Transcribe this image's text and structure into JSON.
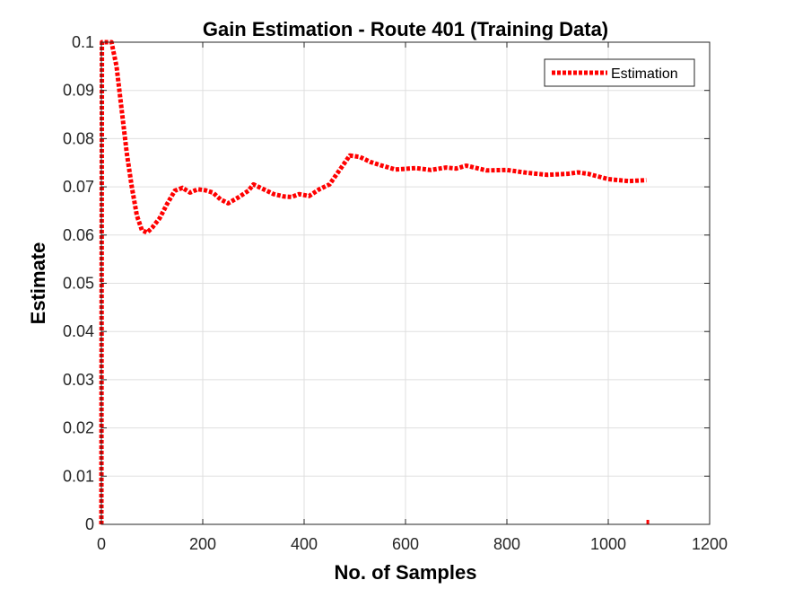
{
  "chart_data": {
    "type": "line",
    "title": "Gain Estimation - Route 401 (Training Data)",
    "xlabel": "No. of Samples",
    "ylabel": "Estimate",
    "xlim": [
      0,
      1200
    ],
    "ylim": [
      0,
      0.1
    ],
    "xticks": [
      0,
      200,
      400,
      600,
      800,
      1000,
      1200
    ],
    "xtick_labels": [
      "0",
      "200",
      "400",
      "600",
      "800",
      "1000",
      "1200"
    ],
    "yticks": [
      0,
      0.01,
      0.02,
      0.03,
      0.04,
      0.05,
      0.06,
      0.07,
      0.08,
      0.09,
      0.1
    ],
    "ytick_labels": [
      "0",
      "0.01",
      "0.02",
      "0.03",
      "0.04",
      "0.05",
      "0.06",
      "0.07",
      "0.08",
      "0.09",
      "0.1"
    ],
    "grid": true,
    "legend_position": "top-right",
    "series": [
      {
        "name": "Estimation",
        "color": "#ff0000",
        "style": "dotted",
        "x": [
          0,
          1,
          3,
          5,
          10,
          20,
          30,
          40,
          50,
          60,
          70,
          80,
          90,
          100,
          115,
          130,
          145,
          160,
          175,
          190,
          205,
          220,
          235,
          250,
          270,
          290,
          300,
          320,
          340,
          360,
          375,
          390,
          410,
          430,
          450,
          470,
          490,
          510,
          530,
          550,
          580,
          620,
          650,
          680,
          700,
          720,
          760,
          800,
          840,
          880,
          920,
          940,
          960,
          1000,
          1040,
          1075
        ],
        "y": [
          0,
          0.1,
          0.1,
          0.1,
          0.1,
          0.1,
          0.095,
          0.086,
          0.077,
          0.07,
          0.064,
          0.061,
          0.0605,
          0.0615,
          0.0635,
          0.0665,
          0.0692,
          0.0698,
          0.0688,
          0.0695,
          0.0693,
          0.0688,
          0.0674,
          0.0666,
          0.0678,
          0.0692,
          0.0705,
          0.0695,
          0.0685,
          0.068,
          0.0679,
          0.0685,
          0.0681,
          0.0695,
          0.0705,
          0.0735,
          0.0765,
          0.0762,
          0.0752,
          0.0745,
          0.0736,
          0.0739,
          0.0735,
          0.074,
          0.0738,
          0.0744,
          0.0734,
          0.0735,
          0.0729,
          0.0725,
          0.0727,
          0.073,
          0.0727,
          0.0716,
          0.0712,
          0.0714
        ]
      }
    ],
    "extra_marks": [
      {
        "x": 1078,
        "y": 0
      }
    ]
  }
}
